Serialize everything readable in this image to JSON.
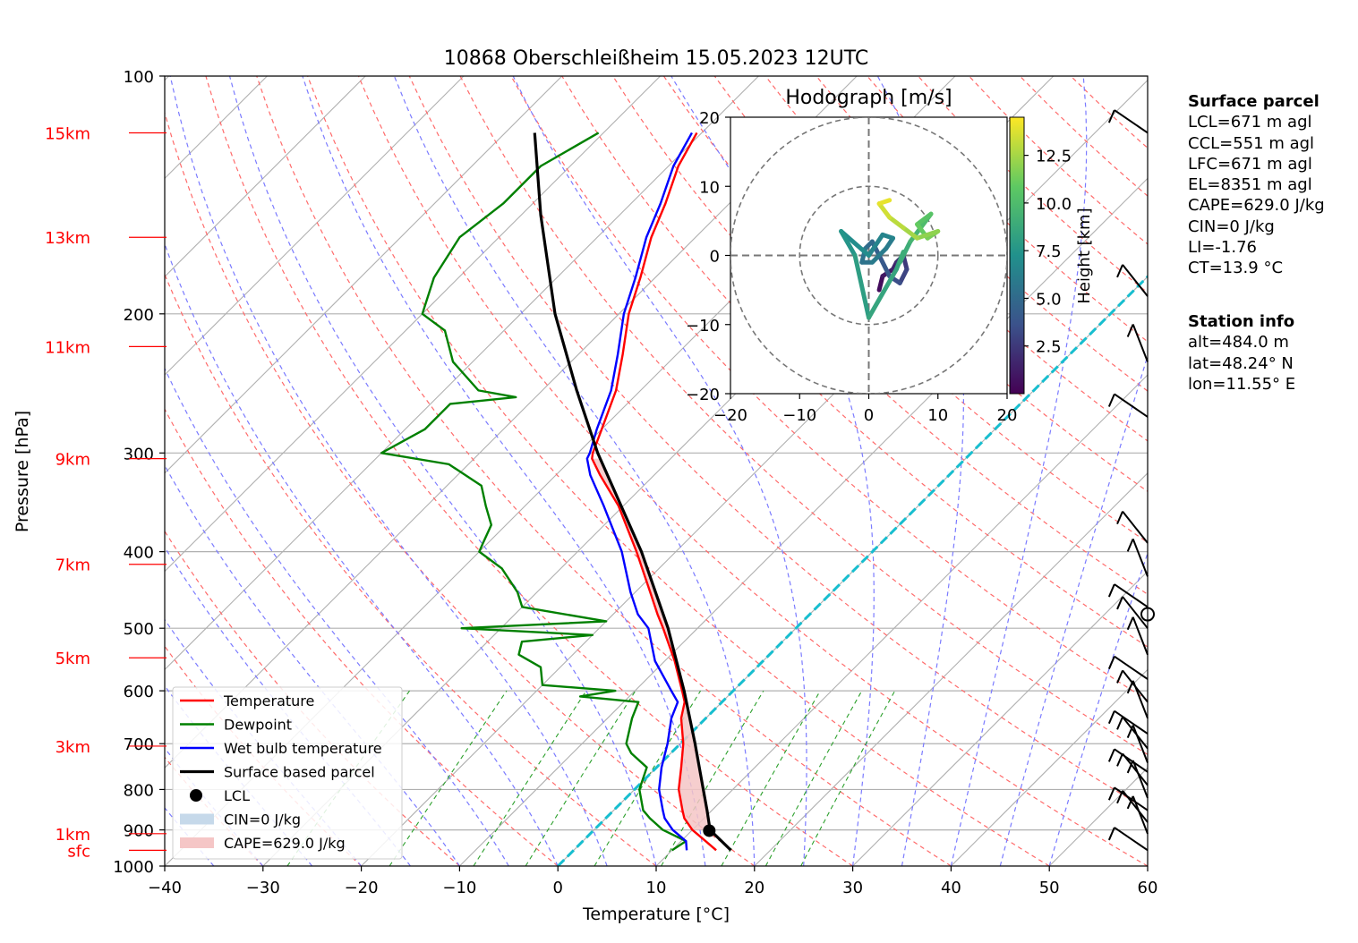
{
  "chart_data": {
    "type": "line",
    "title": "10868 Oberschleißheim 15.05.2023 12UTC",
    "xlabel": "Temperature [°C]",
    "ylabel": "Pressure [hPa]",
    "xlim": [
      -40,
      60
    ],
    "ylim": [
      1000,
      100
    ],
    "y_scale": "log",
    "skew": "skew-T",
    "grid": true,
    "xticks": [
      "−40",
      "−30",
      "−20",
      "−10",
      "0",
      "10",
      "20",
      "30",
      "40",
      "50",
      "60"
    ],
    "yticks": [
      "100",
      "200",
      "300",
      "400",
      "500",
      "600",
      "700",
      "800",
      "900",
      "1000"
    ],
    "height_labels": [
      {
        "label": "sfc",
        "p": 955
      },
      {
        "label": "1km",
        "p": 910
      },
      {
        "label": "3km",
        "p": 705
      },
      {
        "label": "5km",
        "p": 545
      },
      {
        "label": "7km",
        "p": 415
      },
      {
        "label": "9km",
        "p": 305
      },
      {
        "label": "11km",
        "p": 220
      },
      {
        "label": "13km",
        "p": 160
      },
      {
        "label": "15km",
        "p": 118
      }
    ],
    "series": [
      {
        "name": "Temperature",
        "color": "#ff0000",
        "points": [
          [
            955,
            14.5
          ],
          [
            930,
            12.5
          ],
          [
            900,
            10.0
          ],
          [
            870,
            8.0
          ],
          [
            850,
            7.0
          ],
          [
            800,
            4.5
          ],
          [
            750,
            2.5
          ],
          [
            700,
            0.3
          ],
          [
            650,
            -2.5
          ],
          [
            620,
            -3.8
          ],
          [
            600,
            -5.2
          ],
          [
            550,
            -9.0
          ],
          [
            500,
            -13.5
          ],
          [
            480,
            -15.5
          ],
          [
            450,
            -18.5
          ],
          [
            400,
            -24.0
          ],
          [
            350,
            -30.5
          ],
          [
            320,
            -35.5
          ],
          [
            305,
            -38.0
          ],
          [
            300,
            -38.5
          ],
          [
            280,
            -40.0
          ],
          [
            250,
            -42.5
          ],
          [
            225,
            -45.5
          ],
          [
            200,
            -49.0
          ],
          [
            180,
            -51.5
          ],
          [
            160,
            -54.5
          ],
          [
            145,
            -56.5
          ],
          [
            130,
            -59.0
          ],
          [
            118,
            -60.5
          ]
        ]
      },
      {
        "name": "Dewpoint",
        "color": "#008000",
        "points": [
          [
            955,
            10.0
          ],
          [
            930,
            10.5
          ],
          [
            900,
            7.0
          ],
          [
            870,
            4.5
          ],
          [
            850,
            3.0
          ],
          [
            800,
            0.5
          ],
          [
            750,
            -1.0
          ],
          [
            720,
            -4.0
          ],
          [
            700,
            -5.5
          ],
          [
            650,
            -7.5
          ],
          [
            620,
            -8.5
          ],
          [
            610,
            -15.0
          ],
          [
            600,
            -12.0
          ],
          [
            590,
            -20.0
          ],
          [
            560,
            -22.0
          ],
          [
            540,
            -25.5
          ],
          [
            520,
            -26.5
          ],
          [
            510,
            -20.0
          ],
          [
            500,
            -34.0
          ],
          [
            490,
            -20.0
          ],
          [
            470,
            -30.0
          ],
          [
            450,
            -32.0
          ],
          [
            420,
            -36.0
          ],
          [
            400,
            -40.0
          ],
          [
            390,
            -40.5
          ],
          [
            370,
            -41.5
          ],
          [
            350,
            -44.0
          ],
          [
            330,
            -46.5
          ],
          [
            310,
            -52.0
          ],
          [
            300,
            -60.0
          ],
          [
            280,
            -58.0
          ],
          [
            260,
            -58.0
          ],
          [
            255,
            -52.0
          ],
          [
            250,
            -56.5
          ],
          [
            230,
            -62.0
          ],
          [
            210,
            -66.0
          ],
          [
            200,
            -70.0
          ],
          [
            180,
            -72.5
          ],
          [
            160,
            -74.0
          ],
          [
            145,
            -73.0
          ],
          [
            130,
            -73.0
          ],
          [
            118,
            -70.5
          ]
        ]
      },
      {
        "name": "Wet bulb temperature",
        "color": "#0000ff",
        "points": [
          [
            955,
            11.5
          ],
          [
            930,
            10.5
          ],
          [
            900,
            8.0
          ],
          [
            870,
            6.0
          ],
          [
            850,
            5.0
          ],
          [
            800,
            2.5
          ],
          [
            750,
            0.5
          ],
          [
            700,
            -1.3
          ],
          [
            650,
            -3.5
          ],
          [
            620,
            -4.5
          ],
          [
            600,
            -6.3
          ],
          [
            550,
            -11.0
          ],
          [
            500,
            -15.0
          ],
          [
            480,
            -17.5
          ],
          [
            450,
            -20.5
          ],
          [
            400,
            -25.5
          ],
          [
            350,
            -32.0
          ],
          [
            320,
            -36.5
          ],
          [
            305,
            -38.5
          ],
          [
            300,
            -38.8
          ],
          [
            280,
            -40.5
          ],
          [
            250,
            -43.0
          ],
          [
            225,
            -46.0
          ],
          [
            200,
            -49.5
          ],
          [
            180,
            -52.0
          ],
          [
            160,
            -55.0
          ],
          [
            145,
            -57.0
          ],
          [
            130,
            -59.5
          ],
          [
            118,
            -61.0
          ]
        ]
      },
      {
        "name": "Surface based parcel",
        "color": "#000000",
        "points": [
          [
            955,
            16.0
          ],
          [
            900,
            11.8
          ],
          [
            850,
            9.5
          ],
          [
            800,
            7.0
          ],
          [
            700,
            1.5
          ],
          [
            600,
            -5.0
          ],
          [
            500,
            -13.0
          ],
          [
            400,
            -23.5
          ],
          [
            300,
            -38.0
          ],
          [
            250,
            -46.5
          ],
          [
            200,
            -56.5
          ],
          [
            150,
            -68.0
          ],
          [
            118,
            -77.0
          ]
        ]
      }
    ],
    "lcl": {
      "name": "LCL",
      "p": 902,
      "t": 11.8
    },
    "legend": {
      "position": "lower-left",
      "entries": [
        {
          "label": "Temperature",
          "color": "#ff0000",
          "kind": "line"
        },
        {
          "label": "Dewpoint",
          "color": "#008000",
          "kind": "line"
        },
        {
          "label": "Wet bulb temperature",
          "color": "#0000ff",
          "kind": "line"
        },
        {
          "label": "Surface based parcel",
          "color": "#000000",
          "kind": "line"
        },
        {
          "label": "LCL",
          "color": "#000000",
          "kind": "dot"
        },
        {
          "label": "CIN=0 J/kg",
          "color": "#c6d9ea",
          "kind": "patch"
        },
        {
          "label": "CAPE=629.0 J/kg",
          "color": "#f5c6c6",
          "kind": "patch"
        }
      ]
    },
    "hodograph": {
      "title": "Hodograph [m/s]",
      "xlim": [
        -20,
        20
      ],
      "ylim": [
        -20,
        20
      ],
      "xticks": [
        "−20",
        "−10",
        "0",
        "10",
        "20"
      ],
      "yticks": [
        "20",
        "10",
        "0",
        "−10",
        "−20"
      ],
      "colorbar_label": "Height [km]",
      "colorbar_ticks": [
        "2.5",
        "5.0",
        "7.5",
        "10.0",
        "12.5"
      ],
      "rings": [
        10,
        20
      ],
      "points": [
        [
          1.5,
          -5.0,
          0.5
        ],
        [
          2.0,
          -3.0,
          1.0
        ],
        [
          3.5,
          -2.0,
          1.5
        ],
        [
          4.0,
          -1.0,
          2.0
        ],
        [
          5.0,
          0.0,
          2.5
        ],
        [
          5.5,
          -2.0,
          3.0
        ],
        [
          4.5,
          -4.0,
          3.5
        ],
        [
          3.0,
          -3.0,
          4.0
        ],
        [
          1.5,
          0.0,
          4.5
        ],
        [
          0.5,
          2.0,
          5.0
        ],
        [
          -0.5,
          1.0,
          5.5
        ],
        [
          -1.0,
          -1.0,
          5.5
        ],
        [
          0.5,
          -1.0,
          6.0
        ],
        [
          2.5,
          1.0,
          6.0
        ],
        [
          3.5,
          2.5,
          6.5
        ],
        [
          2.0,
          3.0,
          6.5
        ],
        [
          0.0,
          0.0,
          7.0
        ],
        [
          -4.0,
          3.5,
          7.5
        ],
        [
          -2.0,
          0.0,
          8.0
        ],
        [
          0.0,
          -9.0,
          8.5
        ],
        [
          4.0,
          -2.0,
          8.5
        ],
        [
          5.0,
          0.5,
          9.0
        ],
        [
          4.5,
          -1.0,
          9.0
        ],
        [
          6.0,
          2.0,
          9.5
        ],
        [
          7.5,
          4.0,
          10.0
        ],
        [
          9.0,
          6.0,
          10.5
        ],
        [
          7.0,
          4.5,
          11.0
        ],
        [
          8.5,
          2.5,
          11.5
        ],
        [
          10.0,
          3.5,
          12.0
        ],
        [
          7.0,
          2.5,
          12.5
        ],
        [
          5.0,
          4.0,
          13.0
        ],
        [
          3.0,
          5.5,
          13.5
        ],
        [
          1.5,
          7.5,
          14.0
        ],
        [
          3.0,
          8.0,
          14.5
        ]
      ]
    },
    "wind_barbs_count": 25
  },
  "surface_parcel": {
    "title": "Surface parcel",
    "lines": [
      "LCL=671 m agl",
      "CCL=551 m agl",
      "LFC=671 m agl",
      "EL=8351 m agl",
      "CAPE=629.0 J/kg",
      "CIN=0 J/kg",
      "LI=-1.76",
      "CT=13.9 °C"
    ]
  },
  "station_info": {
    "title": "Station info",
    "lines": [
      "alt=484.0 m",
      "lat=48.24° N",
      "lon=11.55° E"
    ]
  }
}
